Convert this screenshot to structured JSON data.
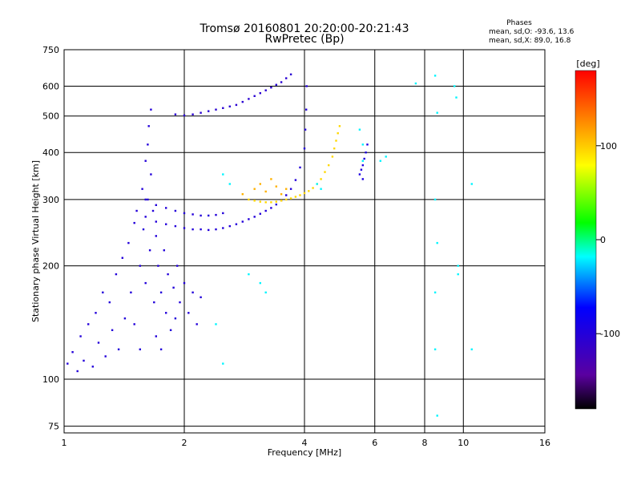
{
  "chart_data": {
    "type": "scatter",
    "title": "Tromsø 20160801 20:20:00-20:21:43",
    "subtitle": "RwPretec (Bp)",
    "xlabel": "Frequency [MHz]",
    "ylabel": "Stationary phase Virtual Height [km]",
    "x_scale": "log",
    "y_scale": "log",
    "xlim": [
      1,
      16
    ],
    "ylim": [
      72,
      750
    ],
    "x_ticks": [
      1,
      2,
      4,
      6,
      8,
      10,
      16
    ],
    "x_tick_labels": [
      "1",
      "2",
      "4",
      "6",
      "8",
      "10",
      "16"
    ],
    "y_ticks": [
      75,
      100,
      200,
      300,
      400,
      500,
      600,
      750
    ],
    "y_tick_labels": [
      "75",
      "100",
      "200",
      "300",
      "400",
      "500",
      "600",
      "750"
    ],
    "grid": true,
    "stats": {
      "header": "Phases",
      "line_o": "mean, sd,O: -93.6, 13.6",
      "line_x": "mean, sd,X:  89.0, 16.8"
    },
    "colorbar": {
      "label": "[deg]",
      "min": -180,
      "max": 180,
      "ticks": [
        100,
        0,
        -100
      ],
      "tick_labels": [
        "100",
        "0",
        "-100"
      ]
    },
    "series": [
      {
        "role": "o-mode lower layer cloud",
        "phase": -100,
        "points": [
          [
            1.02,
            110
          ],
          [
            1.05,
            118
          ],
          [
            1.08,
            105
          ],
          [
            1.1,
            130
          ],
          [
            1.12,
            112
          ],
          [
            1.15,
            140
          ],
          [
            1.18,
            108
          ],
          [
            1.2,
            150
          ],
          [
            1.22,
            125
          ],
          [
            1.25,
            170
          ],
          [
            1.27,
            115
          ],
          [
            1.3,
            160
          ],
          [
            1.32,
            135
          ],
          [
            1.35,
            190
          ],
          [
            1.37,
            120
          ],
          [
            1.4,
            210
          ],
          [
            1.42,
            145
          ],
          [
            1.45,
            230
          ],
          [
            1.47,
            170
          ],
          [
            1.5,
            260
          ],
          [
            1.5,
            140
          ],
          [
            1.52,
            280
          ],
          [
            1.55,
            200
          ],
          [
            1.55,
            120
          ],
          [
            1.57,
            320
          ],
          [
            1.58,
            250
          ],
          [
            1.6,
            380
          ],
          [
            1.6,
            180
          ],
          [
            1.62,
            420
          ],
          [
            1.62,
            300
          ],
          [
            1.63,
            470
          ],
          [
            1.64,
            220
          ],
          [
            1.65,
            520
          ],
          [
            1.65,
            350
          ],
          [
            1.67,
            280
          ],
          [
            1.68,
            160
          ],
          [
            1.7,
            240
          ],
          [
            1.7,
            130
          ],
          [
            1.72,
            200
          ],
          [
            1.75,
            170
          ],
          [
            1.75,
            120
          ],
          [
            1.78,
            220
          ],
          [
            1.8,
            150
          ],
          [
            1.82,
            190
          ],
          [
            1.85,
            135
          ],
          [
            1.88,
            175
          ],
          [
            1.9,
            145
          ],
          [
            1.92,
            200
          ],
          [
            1.95,
            160
          ],
          [
            2.0,
            180
          ],
          [
            2.05,
            150
          ],
          [
            2.1,
            170
          ],
          [
            2.15,
            140
          ],
          [
            2.2,
            165
          ]
        ]
      },
      {
        "role": "o-mode F trace lower",
        "phase": -100,
        "points": [
          [
            1.6,
            270
          ],
          [
            1.7,
            262
          ],
          [
            1.8,
            258
          ],
          [
            1.9,
            255
          ],
          [
            2.0,
            252
          ],
          [
            2.1,
            250
          ],
          [
            2.2,
            250
          ],
          [
            2.3,
            249
          ],
          [
            2.4,
            250
          ],
          [
            2.5,
            252
          ],
          [
            2.6,
            255
          ],
          [
            2.7,
            258
          ],
          [
            2.8,
            262
          ],
          [
            2.9,
            266
          ],
          [
            3.0,
            270
          ],
          [
            3.1,
            275
          ],
          [
            3.2,
            280
          ],
          [
            3.3,
            285
          ],
          [
            3.4,
            291
          ],
          [
            3.5,
            298
          ],
          [
            3.6,
            308
          ],
          [
            3.7,
            320
          ],
          [
            3.8,
            338
          ],
          [
            3.9,
            365
          ],
          [
            4.0,
            410
          ],
          [
            4.02,
            460
          ],
          [
            4.04,
            520
          ],
          [
            4.05,
            600
          ]
        ]
      },
      {
        "role": "o-mode F trace upper",
        "phase": -100,
        "points": [
          [
            1.6,
            300
          ],
          [
            1.7,
            290
          ],
          [
            1.8,
            285
          ],
          [
            1.9,
            280
          ],
          [
            2.0,
            276
          ],
          [
            2.1,
            274
          ],
          [
            2.2,
            272
          ],
          [
            2.3,
            272
          ],
          [
            2.4,
            273
          ],
          [
            2.5,
            276
          ]
        ]
      },
      {
        "role": "o-mode multi-hop trace",
        "phase": -105,
        "points": [
          [
            1.9,
            505
          ],
          [
            2.0,
            502
          ],
          [
            2.1,
            505
          ],
          [
            2.2,
            510
          ],
          [
            2.3,
            515
          ],
          [
            2.4,
            520
          ],
          [
            2.5,
            525
          ],
          [
            2.6,
            530
          ],
          [
            2.7,
            535
          ],
          [
            2.8,
            545
          ],
          [
            2.9,
            555
          ],
          [
            3.0,
            565
          ],
          [
            3.1,
            575
          ],
          [
            3.2,
            585
          ],
          [
            3.3,
            595
          ],
          [
            3.4,
            605
          ],
          [
            3.5,
            615
          ],
          [
            3.6,
            630
          ],
          [
            3.7,
            645
          ]
        ]
      },
      {
        "role": "x-mode F trace",
        "phase": 95,
        "points": [
          [
            2.9,
            300
          ],
          [
            3.0,
            298
          ],
          [
            3.1,
            296
          ],
          [
            3.2,
            295
          ],
          [
            3.3,
            295
          ],
          [
            3.4,
            296
          ],
          [
            3.5,
            298
          ],
          [
            3.6,
            300
          ],
          [
            3.7,
            302
          ],
          [
            3.8,
            305
          ],
          [
            3.9,
            308
          ],
          [
            4.0,
            312
          ],
          [
            4.1,
            316
          ],
          [
            4.2,
            322
          ],
          [
            4.3,
            330
          ],
          [
            4.4,
            340
          ],
          [
            4.5,
            355
          ],
          [
            4.6,
            370
          ],
          [
            4.7,
            390
          ],
          [
            4.75,
            410
          ],
          [
            4.8,
            430
          ],
          [
            4.85,
            450
          ],
          [
            4.9,
            470
          ]
        ]
      },
      {
        "role": "x-mode cloud",
        "phase": 110,
        "points": [
          [
            3.0,
            320
          ],
          [
            3.1,
            330
          ],
          [
            3.2,
            315
          ],
          [
            3.3,
            340
          ],
          [
            3.4,
            325
          ],
          [
            2.8,
            310
          ],
          [
            3.5,
            310
          ],
          [
            3.6,
            320
          ]
        ]
      },
      {
        "role": "sparse returns",
        "phase": -20,
        "points": [
          [
            2.5,
            350
          ],
          [
            2.6,
            330
          ],
          [
            2.9,
            190
          ],
          [
            3.1,
            180
          ],
          [
            3.2,
            170
          ],
          [
            2.4,
            140
          ],
          [
            2.5,
            110
          ],
          [
            4.3,
            330
          ],
          [
            4.4,
            320
          ],
          [
            5.5,
            460
          ],
          [
            5.6,
            420
          ],
          [
            5.6,
            380
          ],
          [
            6.2,
            380
          ],
          [
            6.4,
            390
          ],
          [
            8.5,
            640
          ],
          [
            8.6,
            510
          ],
          [
            8.5,
            300
          ],
          [
            8.6,
            230
          ],
          [
            8.5,
            170
          ],
          [
            8.5,
            120
          ],
          [
            8.6,
            80
          ],
          [
            9.5,
            600
          ],
          [
            9.6,
            560
          ],
          [
            9.7,
            200
          ],
          [
            9.7,
            190
          ],
          [
            10.5,
            330
          ],
          [
            10.5,
            120
          ],
          [
            7.6,
            610
          ]
        ]
      },
      {
        "role": "o-mode sporadic upper",
        "phase": -95,
        "points": [
          [
            5.5,
            350
          ],
          [
            5.55,
            360
          ],
          [
            5.6,
            370
          ],
          [
            5.65,
            385
          ],
          [
            5.7,
            400
          ],
          [
            5.75,
            420
          ],
          [
            5.6,
            340
          ]
        ]
      }
    ]
  }
}
